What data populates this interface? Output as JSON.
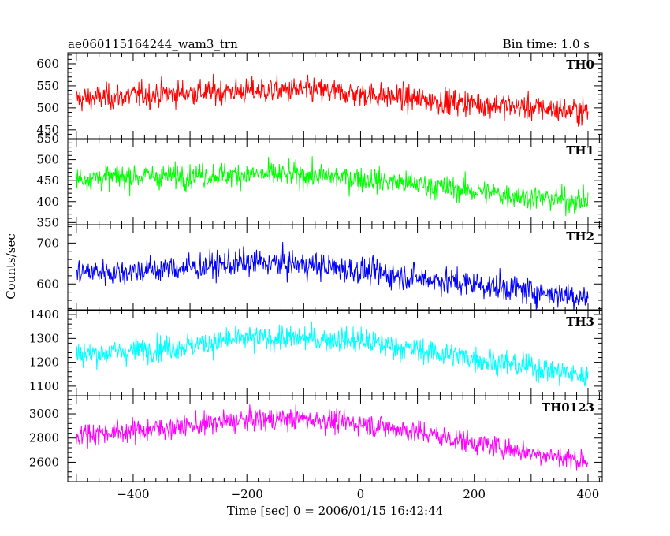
{
  "header": {
    "title": "ae060115164244_wam3_trn",
    "bin_time": "Bin time: 1.0 s"
  },
  "chart_data": {
    "type": "line",
    "title": "ae060115164244_wam3_trn",
    "subtitle": "Bin time: 1.0 s",
    "xlabel": "Time [sec] 0 = 2006/01/15 16:42:44",
    "ylabel": "Counts/sec",
    "xlim": [
      -515,
      425
    ],
    "x_range": [
      -500,
      400
    ],
    "x_step": 1,
    "x_ticks": [
      -400,
      -200,
      0,
      200,
      400
    ],
    "x_tick_labels": [
      "−400",
      "−200",
      "0",
      "200",
      "400"
    ],
    "grid": false,
    "series": [
      {
        "name": "TH0",
        "color": "#ff0000",
        "ylim": [
          430,
          625
        ],
        "y_ticks": [
          450,
          500,
          550,
          600
        ],
        "trend_x": [
          -500,
          -400,
          -300,
          -200,
          -100,
          0,
          100,
          200,
          300,
          400
        ],
        "trend_y": [
          520,
          528,
          535,
          538,
          540,
          532,
          520,
          510,
          500,
          492
        ],
        "noise": 25
      },
      {
        "name": "TH1",
        "color": "#00ff00",
        "ylim": [
          345,
          550
        ],
        "y_ticks": [
          350,
          400,
          450,
          500,
          550
        ],
        "trend_x": [
          -500,
          -400,
          -300,
          -200,
          -100,
          0,
          100,
          200,
          300,
          400
        ],
        "trend_y": [
          455,
          460,
          462,
          465,
          463,
          455,
          440,
          425,
          410,
          400
        ],
        "noise": 25
      },
      {
        "name": "TH2",
        "color": "#0000ff",
        "ylim": [
          535,
          745
        ],
        "y_ticks": [
          600,
          700
        ],
        "trend_x": [
          -500,
          -400,
          -300,
          -200,
          -100,
          0,
          100,
          200,
          300,
          400
        ],
        "trend_y": [
          628,
          632,
          640,
          652,
          648,
          632,
          615,
          600,
          582,
          568
        ],
        "noise": 28
      },
      {
        "name": "TH3",
        "color": "#00ffff",
        "ylim": [
          1060,
          1420
        ],
        "y_ticks": [
          1100,
          1200,
          1300,
          1400
        ],
        "trend_x": [
          -500,
          -400,
          -300,
          -200,
          -100,
          0,
          100,
          200,
          300,
          400
        ],
        "trend_y": [
          1230,
          1250,
          1270,
          1300,
          1300,
          1290,
          1250,
          1215,
          1180,
          1140
        ],
        "noise": 45
      },
      {
        "name": "TH0123",
        "color": "#ff00ff",
        "ylim": [
          2440,
          3150
        ],
        "y_ticks": [
          2600,
          2800,
          3000
        ],
        "trend_x": [
          -500,
          -400,
          -300,
          -200,
          -100,
          0,
          100,
          200,
          300,
          400
        ],
        "trend_y": [
          2830,
          2860,
          2900,
          2950,
          2960,
          2920,
          2850,
          2760,
          2680,
          2610
        ],
        "noise": 80
      }
    ]
  }
}
